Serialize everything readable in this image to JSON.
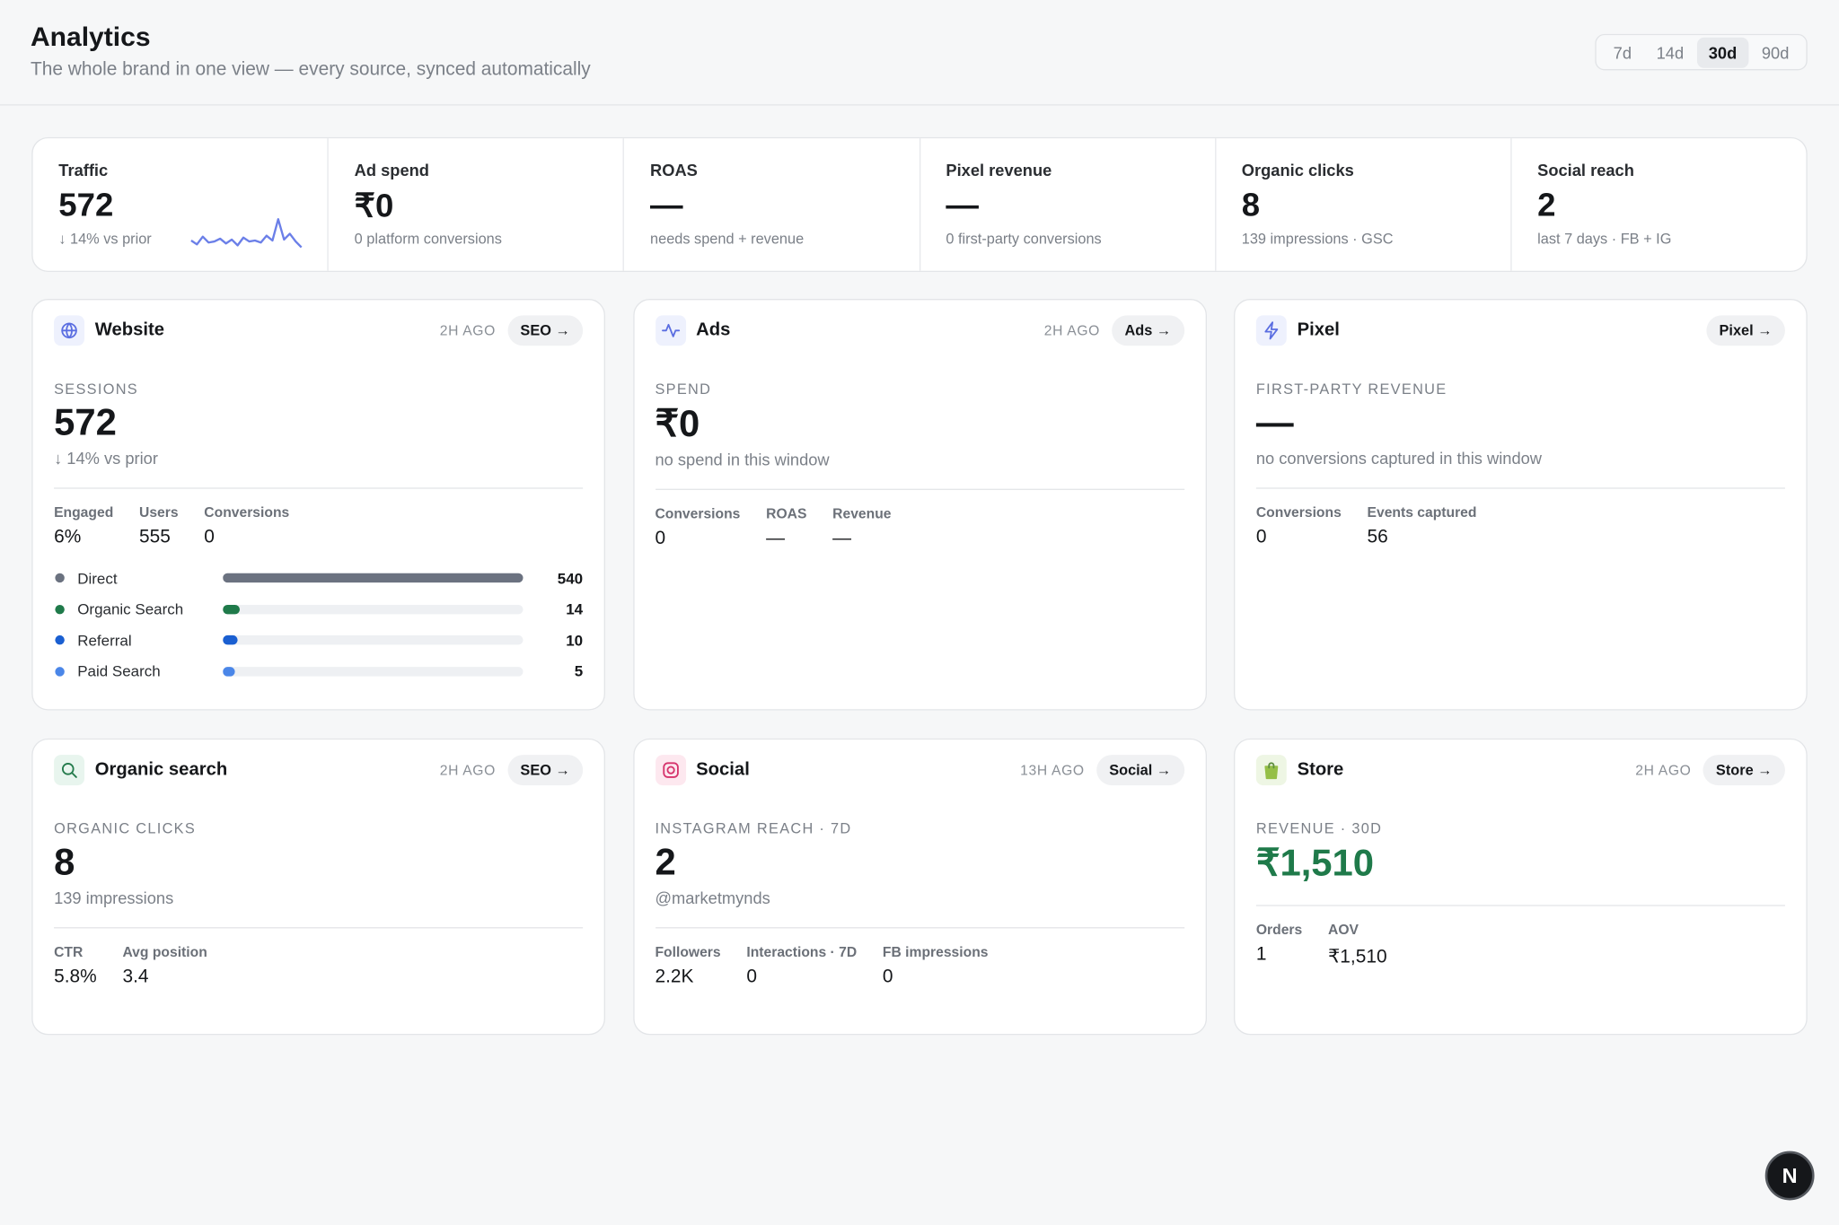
{
  "header": {
    "title": "Analytics",
    "subtitle": "The whole brand in one view — every source, synced automatically"
  },
  "range_tabs": {
    "options": [
      "7d",
      "14d",
      "30d",
      "90d"
    ],
    "selected": 2
  },
  "kpis": [
    {
      "label": "Traffic",
      "value": "572",
      "note": "↓ 14% vs prior",
      "sparkline": [
        22,
        18,
        26,
        20,
        21,
        24,
        19,
        23,
        17,
        25,
        21,
        22,
        20,
        27,
        22,
        44,
        23,
        29,
        21,
        15
      ]
    },
    {
      "label": "Ad spend",
      "value": "₹0",
      "note": "0 platform conversions"
    },
    {
      "label": "ROAS",
      "value": "—",
      "note": "needs spend + revenue"
    },
    {
      "label": "Pixel revenue",
      "value": "—",
      "note": "0 first-party conversions"
    },
    {
      "label": "Organic clicks",
      "value": "8",
      "note": "139 impressions · GSC"
    },
    {
      "label": "Social reach",
      "value": "2",
      "note": "last 7 days · FB + IG"
    }
  ],
  "cards": [
    {
      "title": "Website",
      "updated": "2H AGO",
      "action": "SEO →",
      "metric_label": "SESSIONS",
      "metric": "572",
      "metric_note": "↓ 14% vs prior",
      "stats": [
        {
          "label": "Engaged",
          "value": "6%"
        },
        {
          "label": "Users",
          "value": "555"
        },
        {
          "label": "Conversions",
          "value": "0"
        }
      ],
      "channels": [
        {
          "name": "Direct",
          "value": 540,
          "color": "#6b7280"
        },
        {
          "name": "Organic Search",
          "value": 14,
          "color": "#1f7a4a"
        },
        {
          "name": "Referral",
          "value": 10,
          "color": "#1a5fd1"
        },
        {
          "name": "Paid Search",
          "value": 5,
          "color": "#4a86e8"
        }
      ]
    },
    {
      "title": "Ads",
      "updated": "2H AGO",
      "action": "Ads →",
      "metric_label": "SPEND",
      "metric": "₹0",
      "metric_note": "no spend in this window",
      "stats": [
        {
          "label": "Conversions",
          "value": "0"
        },
        {
          "label": "ROAS",
          "value": "—"
        },
        {
          "label": "Revenue",
          "value": "—"
        }
      ]
    },
    {
      "title": "Pixel",
      "action": "Pixel →",
      "metric_label": "FIRST-PARTY REVENUE",
      "metric": "—",
      "metric_note": "no conversions captured in this window",
      "stats": [
        {
          "label": "Conversions",
          "value": "0"
        },
        {
          "label": "Events captured",
          "value": "56"
        }
      ]
    },
    {
      "title": "Organic search",
      "updated": "2H AGO",
      "action": "SEO →",
      "metric_label": "ORGANIC CLICKS",
      "metric": "8",
      "metric_note": "139 impressions",
      "stats": [
        {
          "label": "CTR",
          "value": "5.8%"
        },
        {
          "label": "Avg position",
          "value": "3.4"
        }
      ]
    },
    {
      "title": "Social",
      "updated": "13H AGO",
      "action": "Social →",
      "metric_label": "INSTAGRAM REACH · 7D",
      "metric": "2",
      "metric_note": "@marketmynds",
      "stats": [
        {
          "label": "Followers",
          "value": "2.2K"
        },
        {
          "label": "Interactions · 7D",
          "value": "0"
        },
        {
          "label": "FB impressions",
          "value": "0"
        }
      ]
    },
    {
      "title": "Store",
      "updated": "2H AGO",
      "action": "Store →",
      "metric_label": "REVENUE · 30D",
      "metric": "₹1,510",
      "metric_color": "#1f7a4a",
      "stats": [
        {
          "label": "Orders",
          "value": "1"
        },
        {
          "label": "AOV",
          "value": "₹1,510"
        }
      ]
    }
  ],
  "floating_badge": "N"
}
